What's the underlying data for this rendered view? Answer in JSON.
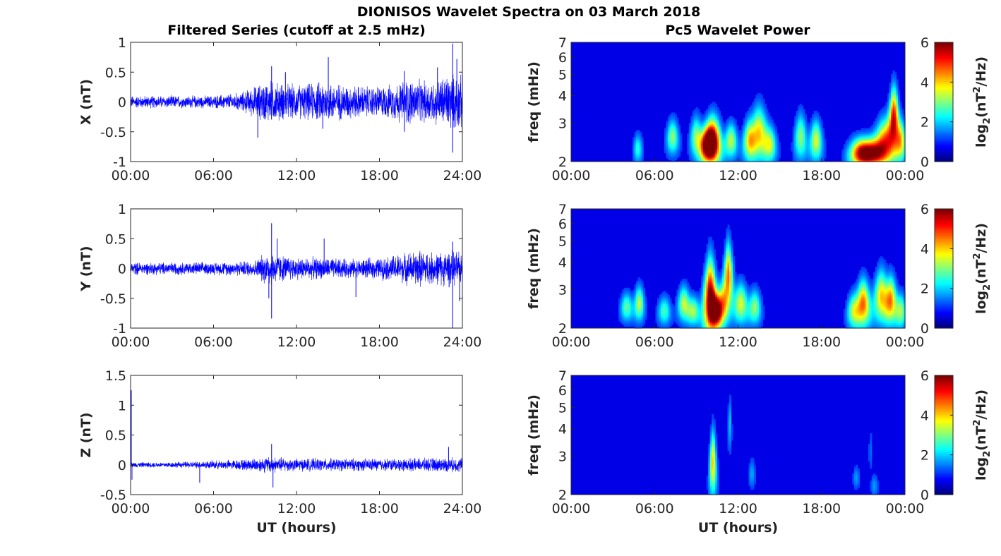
{
  "figure": {
    "title": "DIONISOS Wavelet Spectra on 03 March 2018",
    "left_column_title": "Filtered Series (cutoff at 2.5 mHz)",
    "right_column_title": "Pc5 Wavelet Power",
    "xlabel": "UT (hours)"
  },
  "chart_data": [
    {
      "type": "line",
      "panel": "X",
      "title": "Filtered Series (cutoff at 2.5 mHz)",
      "ylabel": "X (nT)",
      "xlabel": "",
      "x_ticks": [
        "00:00",
        "06:00",
        "12:00",
        "18:00",
        "24:00"
      ],
      "xlim_hours": [
        0,
        24
      ],
      "y_ticks": [
        "-1",
        "-0.5",
        "0",
        "0.5",
        "1"
      ],
      "ylim": [
        -1,
        1
      ],
      "color": "#0000ff",
      "envelope": {
        "x_hours": [
          0,
          2,
          4,
          6,
          7,
          8,
          9,
          10,
          11,
          12,
          13,
          14,
          15,
          16,
          17,
          18,
          19,
          20,
          21,
          22,
          23,
          24
        ],
        "amplitude": [
          0.12,
          0.12,
          0.12,
          0.12,
          0.15,
          0.18,
          0.3,
          0.42,
          0.35,
          0.33,
          0.35,
          0.4,
          0.35,
          0.32,
          0.3,
          0.3,
          0.33,
          0.45,
          0.4,
          0.42,
          0.55,
          0.5
        ]
      },
      "spikes": [
        {
          "x": 9.2,
          "y": -0.6
        },
        {
          "x": 10.2,
          "y": 0.6
        },
        {
          "x": 11.2,
          "y": 0.5
        },
        {
          "x": 14.3,
          "y": 0.75
        },
        {
          "x": 13.9,
          "y": -0.45
        },
        {
          "x": 19.8,
          "y": 0.52
        },
        {
          "x": 19.8,
          "y": -0.5
        },
        {
          "x": 22.2,
          "y": 0.58
        },
        {
          "x": 23.3,
          "y": 0.98
        },
        {
          "x": 23.3,
          "y": -0.85
        },
        {
          "x": 23.6,
          "y": 0.72
        }
      ]
    },
    {
      "type": "line",
      "panel": "Y",
      "ylabel": "Y (nT)",
      "xlabel": "",
      "x_ticks": [
        "00:00",
        "06:00",
        "12:00",
        "18:00",
        "24:00"
      ],
      "xlim_hours": [
        0,
        24
      ],
      "y_ticks": [
        "-1",
        "-0.5",
        "0",
        "0.5",
        "1"
      ],
      "ylim": [
        -1,
        1
      ],
      "color": "#0000ff",
      "envelope": {
        "x_hours": [
          0,
          2,
          4,
          6,
          8,
          9,
          10,
          11,
          12,
          14,
          16,
          18,
          19,
          20,
          21,
          22,
          23,
          24
        ],
        "amplitude": [
          0.12,
          0.12,
          0.12,
          0.12,
          0.14,
          0.16,
          0.35,
          0.25,
          0.22,
          0.2,
          0.18,
          0.2,
          0.25,
          0.3,
          0.35,
          0.3,
          0.35,
          0.3
        ]
      },
      "spikes": [
        {
          "x": 10.2,
          "y": 0.76
        },
        {
          "x": 10.2,
          "y": -0.84
        },
        {
          "x": 10.0,
          "y": -0.5
        },
        {
          "x": 10.6,
          "y": 0.5
        },
        {
          "x": 14.0,
          "y": 0.5
        },
        {
          "x": 16.3,
          "y": -0.48
        },
        {
          "x": 23.3,
          "y": -1.0
        },
        {
          "x": 23.3,
          "y": 0.45
        },
        {
          "x": 23.8,
          "y": -0.55
        }
      ]
    },
    {
      "type": "line",
      "panel": "Z",
      "ylabel": "Z (nT)",
      "xlabel": "UT (hours)",
      "x_ticks": [
        "00:00",
        "06:00",
        "12:00",
        "18:00",
        "24:00"
      ],
      "xlim_hours": [
        0,
        24
      ],
      "y_ticks": [
        "-0.5",
        "0",
        "0.5",
        "1",
        "1.5"
      ],
      "ylim": [
        -0.5,
        1.5
      ],
      "color": "#0000ff",
      "envelope": {
        "x_hours": [
          0,
          2,
          4,
          6,
          8,
          10,
          11,
          12,
          14,
          16,
          18,
          20,
          22,
          24
        ],
        "amplitude": [
          0.05,
          0.05,
          0.06,
          0.08,
          0.1,
          0.16,
          0.14,
          0.12,
          0.12,
          0.12,
          0.12,
          0.12,
          0.13,
          0.14
        ]
      },
      "spikes": [
        {
          "x": 0.05,
          "y": 1.25
        },
        {
          "x": 0.1,
          "y": -0.25
        },
        {
          "x": 5.0,
          "y": -0.3
        },
        {
          "x": 10.2,
          "y": 0.35
        },
        {
          "x": 10.3,
          "y": -0.38
        },
        {
          "x": 23.0,
          "y": 0.3
        }
      ]
    },
    {
      "type": "heatmap",
      "panel": "X",
      "title": "Pc5 Wavelet Power",
      "ylabel": "freq (mHz)",
      "xlabel": "",
      "x_ticks": [
        "00:00",
        "06:00",
        "12:00",
        "18:00",
        "00:00"
      ],
      "xlim_hours": [
        0,
        24
      ],
      "y_ticks": [
        "2",
        "3",
        "4",
        "5",
        "6",
        "7"
      ],
      "ylim_mhz": [
        2,
        7
      ],
      "yscale": "log",
      "colormap": "jet",
      "colorbar_label": "log2(nT²/Hz)",
      "colorbar_ticks": [
        "0",
        "2",
        "4",
        "6"
      ],
      "clim": [
        0,
        6
      ],
      "features": [
        {
          "t": 9.8,
          "f": 2.4,
          "dt": 0.35,
          "width": 0.12,
          "peak": 5.0
        },
        {
          "t": 10.2,
          "f": 2.5,
          "dt": 0.4,
          "width": 0.16,
          "peak": 5.5
        },
        {
          "t": 9.0,
          "f": 2.6,
          "dt": 0.3,
          "width": 0.14,
          "peak": 2.5
        },
        {
          "t": 11.5,
          "f": 2.5,
          "dt": 0.3,
          "width": 0.12,
          "peak": 2.8
        },
        {
          "t": 12.8,
          "f": 2.5,
          "dt": 0.3,
          "width": 0.14,
          "peak": 2.8
        },
        {
          "t": 13.5,
          "f": 2.7,
          "dt": 0.45,
          "width": 0.18,
          "peak": 3.5
        },
        {
          "t": 14.3,
          "f": 2.4,
          "dt": 0.3,
          "width": 0.12,
          "peak": 2.5
        },
        {
          "t": 16.5,
          "f": 2.6,
          "dt": 0.3,
          "width": 0.16,
          "peak": 2.5
        },
        {
          "t": 17.6,
          "f": 2.5,
          "dt": 0.3,
          "width": 0.14,
          "peak": 3.0
        },
        {
          "t": 20.8,
          "f": 2.2,
          "dt": 0.5,
          "width": 0.1,
          "peak": 4.0
        },
        {
          "t": 21.7,
          "f": 2.2,
          "dt": 0.6,
          "width": 0.1,
          "peak": 4.5
        },
        {
          "t": 22.6,
          "f": 2.5,
          "dt": 0.5,
          "width": 0.15,
          "peak": 4.0
        },
        {
          "t": 23.2,
          "f": 3.2,
          "dt": 0.3,
          "width": 0.2,
          "peak": 5.0
        },
        {
          "t": 23.7,
          "f": 2.5,
          "dt": 0.25,
          "width": 0.14,
          "peak": 3.0
        },
        {
          "t": 7.3,
          "f": 2.6,
          "dt": 0.3,
          "width": 0.12,
          "peak": 2.5
        },
        {
          "t": 4.8,
          "f": 2.3,
          "dt": 0.2,
          "width": 0.1,
          "peak": 1.8
        }
      ]
    },
    {
      "type": "heatmap",
      "panel": "Y",
      "ylabel": "freq (mHz)",
      "xlabel": "",
      "x_ticks": [
        "00:00",
        "06:00",
        "12:00",
        "18:00",
        "00:00"
      ],
      "xlim_hours": [
        0,
        24
      ],
      "y_ticks": [
        "2",
        "3",
        "4",
        "5",
        "6",
        "7"
      ],
      "ylim_mhz": [
        2,
        7
      ],
      "yscale": "log",
      "colormap": "jet",
      "colorbar_label": "log2(nT²/Hz)",
      "colorbar_ticks": [
        "0",
        "2",
        "4",
        "6"
      ],
      "clim": [
        0,
        6
      ],
      "features": [
        {
          "t": 10.0,
          "f": 2.8,
          "dt": 0.35,
          "width": 0.25,
          "peak": 5.8
        },
        {
          "t": 10.4,
          "f": 2.4,
          "dt": 0.3,
          "width": 0.12,
          "peak": 4.5
        },
        {
          "t": 11.3,
          "f": 3.5,
          "dt": 0.3,
          "width": 0.22,
          "peak": 4.2
        },
        {
          "t": 10.9,
          "f": 2.6,
          "dt": 0.3,
          "width": 0.14,
          "peak": 3.0
        },
        {
          "t": 4.0,
          "f": 2.5,
          "dt": 0.3,
          "width": 0.1,
          "peak": 2.2
        },
        {
          "t": 4.9,
          "f": 2.6,
          "dt": 0.25,
          "width": 0.12,
          "peak": 2.8
        },
        {
          "t": 6.7,
          "f": 2.4,
          "dt": 0.3,
          "width": 0.1,
          "peak": 2.0
        },
        {
          "t": 8.1,
          "f": 2.6,
          "dt": 0.3,
          "width": 0.12,
          "peak": 2.8
        },
        {
          "t": 8.8,
          "f": 2.4,
          "dt": 0.3,
          "width": 0.1,
          "peak": 2.5
        },
        {
          "t": 12.2,
          "f": 2.6,
          "dt": 0.35,
          "width": 0.14,
          "peak": 3.0
        },
        {
          "t": 13.2,
          "f": 2.5,
          "dt": 0.3,
          "width": 0.12,
          "peak": 2.5
        },
        {
          "t": 20.3,
          "f": 2.4,
          "dt": 0.3,
          "width": 0.12,
          "peak": 2.5
        },
        {
          "t": 21.0,
          "f": 2.6,
          "dt": 0.35,
          "width": 0.16,
          "peak": 4.2
        },
        {
          "t": 22.3,
          "f": 2.8,
          "dt": 0.4,
          "width": 0.18,
          "peak": 3.5
        },
        {
          "t": 23.0,
          "f": 2.7,
          "dt": 0.3,
          "width": 0.16,
          "peak": 3.6
        },
        {
          "t": 23.7,
          "f": 2.4,
          "dt": 0.25,
          "width": 0.12,
          "peak": 2.5
        }
      ]
    },
    {
      "type": "heatmap",
      "panel": "Z",
      "ylabel": "freq (mHz)",
      "xlabel": "UT (hours)",
      "x_ticks": [
        "00:00",
        "06:00",
        "12:00",
        "18:00",
        "00:00"
      ],
      "xlim_hours": [
        0,
        24
      ],
      "y_ticks": [
        "2",
        "3",
        "4",
        "5",
        "6",
        "7"
      ],
      "ylim_mhz": [
        2,
        7
      ],
      "yscale": "log",
      "colormap": "jet",
      "colorbar_label": "log2(nT²/Hz)",
      "colorbar_ticks": [
        "0",
        "2",
        "4",
        "6"
      ],
      "clim": [
        0,
        6
      ],
      "features": [
        {
          "t": 10.2,
          "f": 2.8,
          "dt": 0.18,
          "width": 0.22,
          "peak": 3.6
        },
        {
          "t": 11.4,
          "f": 4.2,
          "dt": 0.15,
          "width": 0.18,
          "peak": 1.2
        },
        {
          "t": 13.0,
          "f": 2.5,
          "dt": 0.15,
          "width": 0.1,
          "peak": 1.0
        },
        {
          "t": 20.5,
          "f": 2.4,
          "dt": 0.15,
          "width": 0.08,
          "peak": 0.9
        },
        {
          "t": 21.8,
          "f": 2.2,
          "dt": 0.15,
          "width": 0.08,
          "peak": 0.9
        },
        {
          "t": 21.5,
          "f": 3.2,
          "dt": 0.1,
          "width": 0.15,
          "peak": 0.6
        }
      ]
    }
  ]
}
